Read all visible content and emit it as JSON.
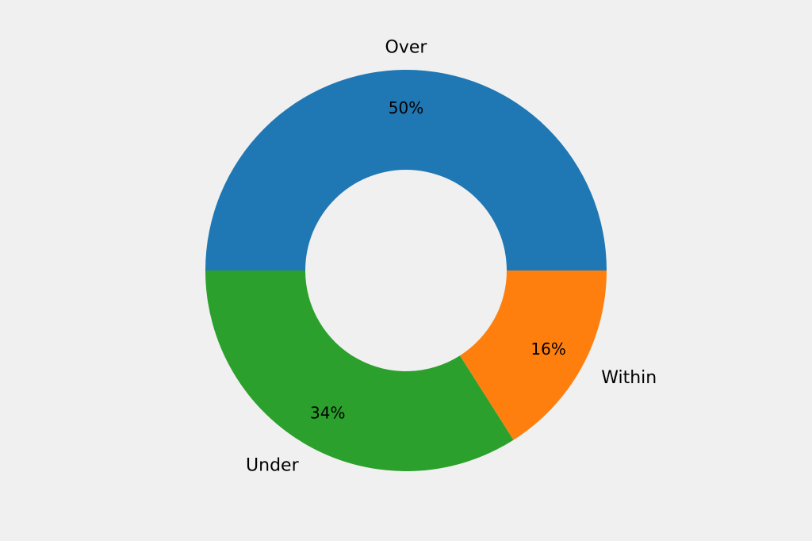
{
  "chart_data": {
    "type": "pie",
    "donut": true,
    "title": "",
    "labels": [
      "Over",
      "Under",
      "Within"
    ],
    "values": [
      50,
      34,
      16
    ],
    "percent_labels": [
      "50%",
      "34%",
      "16%"
    ],
    "colors": [
      "#1f77b4",
      "#2ca02c",
      "#ff7f0e"
    ],
    "start_angle_deg": 0,
    "direction": "counterclockwise",
    "legend": "none"
  }
}
